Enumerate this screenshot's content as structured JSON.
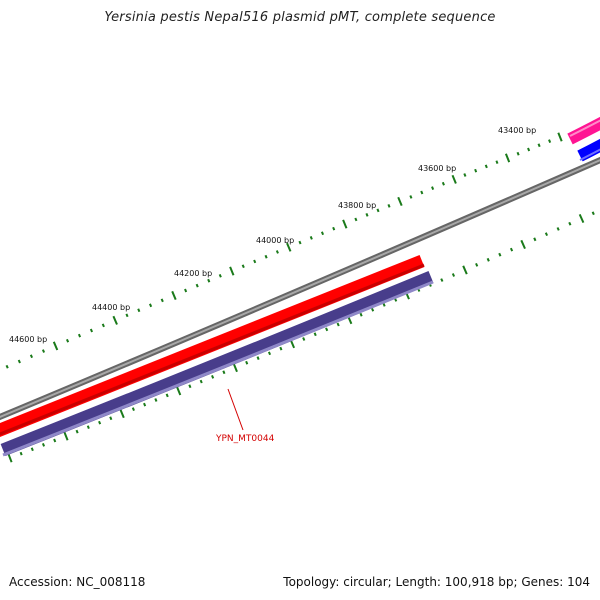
{
  "title": "Yersinia pestis Nepal516 plasmid pMT, complete sequence",
  "footer": {
    "accession": "Accession: NC_008118",
    "summary": "Topology: circular; Length: 100,918 bp; Genes: 104"
  },
  "colors": {
    "backbone": "#808080",
    "gene_forward": "#ff0000",
    "gene_reverse": "#483d8b",
    "gene_pink": "#ff1493",
    "gene_blue": "#0000ff",
    "ticks": "#1a7a1a",
    "gene_label": "#d40000"
  },
  "tick_labels": [
    {
      "text": "43400 bp"
    },
    {
      "text": "43600 bp"
    },
    {
      "text": "43800 bp"
    },
    {
      "text": "44000 bp"
    },
    {
      "text": "44200 bp"
    },
    {
      "text": "44400 bp"
    },
    {
      "text": "44600 bp"
    }
  ],
  "gene_labels": [
    {
      "text": "YPN_MT0044"
    }
  ]
}
